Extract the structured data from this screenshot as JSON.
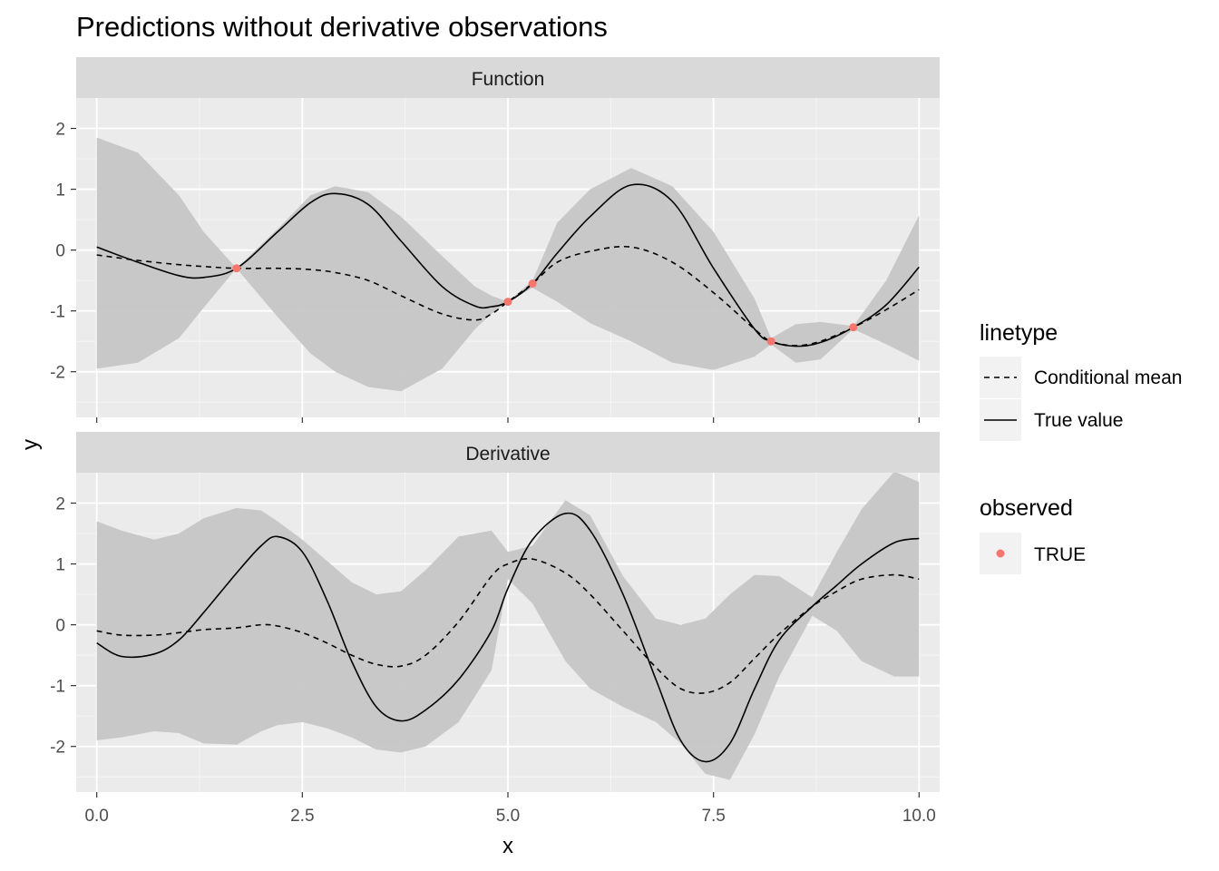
{
  "chart_data": {
    "type": "line",
    "title": "Predictions without derivative observations",
    "xlabel": "x",
    "ylabel": "y",
    "xlim": [
      -0.25,
      10.25
    ],
    "ylim": [
      -2.75,
      2.5
    ],
    "x_ticks": [
      0,
      2.5,
      5,
      7.5,
      10
    ],
    "x_tick_labels": [
      "0.0",
      "2.5",
      "5.0",
      "7.5",
      "10.0"
    ],
    "y_ticks": [
      -2,
      -1,
      0,
      1,
      2
    ],
    "y_tick_labels": [
      "-2",
      "-1",
      "0",
      "1",
      "2"
    ],
    "grid": true,
    "legend_position": "right",
    "legend": {
      "linetype_title": "linetype",
      "linetype_entries": [
        {
          "label": "Conditional mean",
          "dash": "dashed"
        },
        {
          "label": "True value",
          "dash": "solid"
        }
      ],
      "observed_title": "observed",
      "observed_entries": [
        {
          "label": "TRUE",
          "color": "#f8766d"
        }
      ]
    },
    "colors": {
      "ribbon": "#c6c6c6",
      "panel_background": "#ebebeb",
      "strip_background": "#d9d9d9",
      "grid_major": "#ffffff",
      "line": "#000000",
      "point": "#f8766d"
    },
    "panels": [
      {
        "label": "Function",
        "x": [
          0,
          0.5,
          1,
          1.3,
          1.7,
          2.2,
          2.6,
          2.9,
          3.3,
          3.7,
          4.2,
          4.6,
          4.8,
          5.0,
          5.3,
          5.6,
          6.0,
          6.5,
          7.0,
          7.5,
          8.0,
          8.2,
          8.5,
          8.8,
          9.2,
          9.6,
          10
        ],
        "true_value": [
          0.05,
          -0.2,
          -0.42,
          -0.45,
          -0.3,
          0.3,
          0.78,
          0.93,
          0.75,
          0.15,
          -0.6,
          -0.92,
          -0.93,
          -0.85,
          -0.55,
          -0.05,
          0.55,
          1.07,
          0.8,
          -0.3,
          -1.3,
          -1.5,
          -1.58,
          -1.52,
          -1.27,
          -0.9,
          -0.28
        ],
        "conditional_mean": [
          -0.08,
          -0.17,
          -0.24,
          -0.27,
          -0.3,
          -0.3,
          -0.32,
          -0.37,
          -0.5,
          -0.75,
          -1.05,
          -1.15,
          -1.05,
          -0.85,
          -0.55,
          -0.2,
          -0.02,
          0.05,
          -0.2,
          -0.7,
          -1.3,
          -1.5,
          -1.57,
          -1.5,
          -1.27,
          -0.98,
          -0.65
        ],
        "upper": [
          1.85,
          1.6,
          0.9,
          0.3,
          -0.3,
          0.35,
          0.9,
          1.05,
          0.95,
          0.55,
          -0.1,
          -0.6,
          -0.75,
          -0.85,
          -0.5,
          0.45,
          1.0,
          1.35,
          1.05,
          0.3,
          -0.8,
          -1.45,
          -1.22,
          -1.18,
          -1.25,
          -0.5,
          0.57
        ],
        "lower": [
          -1.95,
          -1.85,
          -1.45,
          -0.95,
          -0.3,
          -1.1,
          -1.7,
          -2.0,
          -2.25,
          -2.32,
          -1.95,
          -1.3,
          -1.05,
          -0.85,
          -0.62,
          -0.85,
          -1.2,
          -1.5,
          -1.85,
          -1.97,
          -1.75,
          -1.55,
          -1.85,
          -1.8,
          -1.3,
          -1.55,
          -1.82
        ],
        "observed_points": [
          {
            "x": 1.7,
            "y": -0.3
          },
          {
            "x": 5.0,
            "y": -0.85
          },
          {
            "x": 5.3,
            "y": -0.55
          },
          {
            "x": 8.2,
            "y": -1.5
          },
          {
            "x": 9.2,
            "y": -1.27
          }
        ]
      },
      {
        "label": "Derivative",
        "x": [
          0,
          0.3,
          0.7,
          1.0,
          1.3,
          1.7,
          2.0,
          2.2,
          2.5,
          2.8,
          3.1,
          3.4,
          3.7,
          4.0,
          4.4,
          4.8,
          5.0,
          5.3,
          5.7,
          6.0,
          6.4,
          6.8,
          7.1,
          7.4,
          7.7,
          8.0,
          8.3,
          8.7,
          9.0,
          9.3,
          9.7,
          10
        ],
        "true_value": [
          -0.3,
          -0.52,
          -0.48,
          -0.25,
          0.2,
          0.85,
          1.3,
          1.45,
          1.2,
          0.4,
          -0.6,
          -1.35,
          -1.58,
          -1.4,
          -0.9,
          -0.1,
          0.6,
          1.4,
          1.83,
          1.55,
          0.5,
          -0.9,
          -1.9,
          -2.25,
          -1.95,
          -1.05,
          -0.25,
          0.3,
          0.65,
          1.0,
          1.35,
          1.42
        ],
        "conditional_mean": [
          -0.1,
          -0.17,
          -0.17,
          -0.13,
          -0.08,
          -0.05,
          0.0,
          -0.02,
          -0.13,
          -0.3,
          -0.5,
          -0.65,
          -0.68,
          -0.5,
          0.05,
          0.8,
          1.0,
          1.08,
          0.85,
          0.5,
          -0.1,
          -0.7,
          -1.05,
          -1.12,
          -0.95,
          -0.55,
          -0.15,
          0.3,
          0.55,
          0.75,
          0.82,
          0.75
        ],
        "upper": [
          1.7,
          1.55,
          1.4,
          1.5,
          1.75,
          1.92,
          1.88,
          1.7,
          1.4,
          1.05,
          0.7,
          0.5,
          0.55,
          0.9,
          1.45,
          1.55,
          1.2,
          1.3,
          2.05,
          1.8,
          0.8,
          0.1,
          0.0,
          0.1,
          0.5,
          0.82,
          0.8,
          0.45,
          1.2,
          1.9,
          2.52,
          2.35
        ],
        "lower": [
          -1.9,
          -1.85,
          -1.75,
          -1.78,
          -1.95,
          -1.97,
          -1.75,
          -1.65,
          -1.6,
          -1.7,
          -1.85,
          -2.05,
          -2.1,
          -2.0,
          -1.6,
          -0.75,
          0.75,
          0.35,
          -0.6,
          -1.05,
          -1.35,
          -1.6,
          -1.95,
          -2.45,
          -2.55,
          -1.8,
          -0.85,
          0.15,
          -0.1,
          -0.6,
          -0.85,
          -0.85
        ]
      }
    ]
  }
}
